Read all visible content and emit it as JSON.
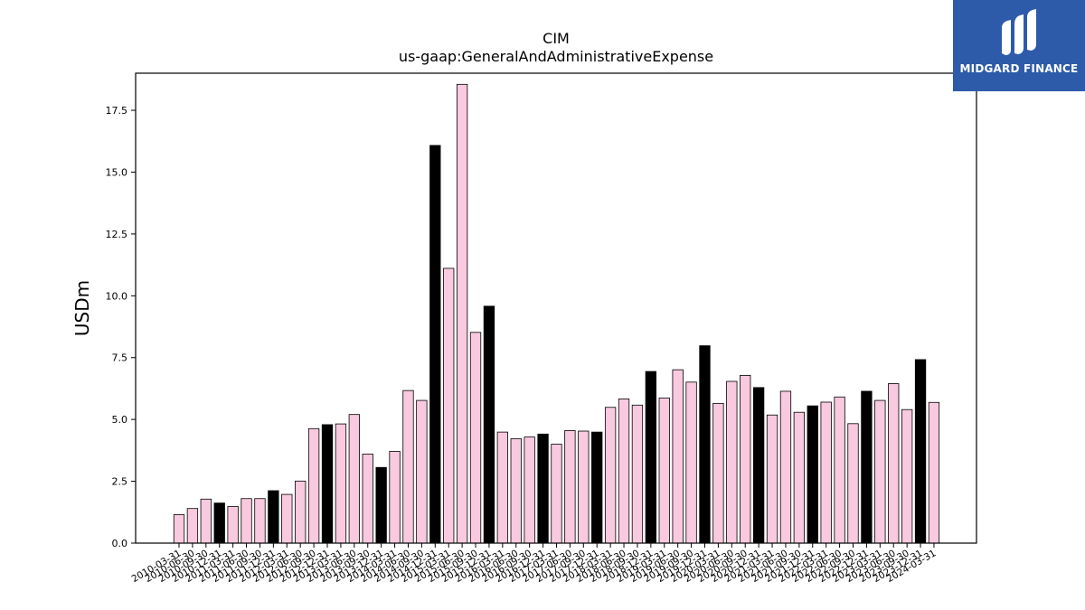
{
  "chart_data": {
    "type": "bar",
    "title": "CIM",
    "subtitle": "us-gaap:GeneralAndAdministrativeExpense",
    "xlabel": "",
    "ylabel": "USDm",
    "ylim": [
      0,
      19.0
    ],
    "yticks": [
      0.0,
      2.5,
      5.0,
      7.5,
      10.0,
      12.5,
      15.0,
      17.5
    ],
    "ytick_labels": [
      "0.0",
      "2.5",
      "5.0",
      "7.5",
      "10.0",
      "12.5",
      "15.0",
      "17.5"
    ],
    "grid": false,
    "colors": {
      "quarter": "#f9c9df",
      "year_end": "#000000",
      "edge": "#000000"
    },
    "categories": [
      "2010-03-31",
      "2010-06-30",
      "2010-09-30",
      "2010-12-31",
      "2011-03-31",
      "2011-06-30",
      "2011-09-30",
      "2011-12-31",
      "2012-03-31",
      "2012-06-30",
      "2012-09-30",
      "2012-12-31",
      "2013-03-31",
      "2013-06-30",
      "2013-09-30",
      "2013-12-31",
      "2014-03-31",
      "2014-06-30",
      "2014-09-30",
      "2014-12-31",
      "2015-03-31",
      "2015-06-30",
      "2015-09-30",
      "2015-12-31",
      "2016-03-31",
      "2016-06-30",
      "2016-09-30",
      "2016-12-31",
      "2017-03-31",
      "2017-06-30",
      "2017-09-30",
      "2017-12-31",
      "2018-03-31",
      "2018-06-30",
      "2018-09-30",
      "2018-12-31",
      "2019-03-31",
      "2019-06-30",
      "2019-09-30",
      "2019-12-31",
      "2020-03-31",
      "2020-06-30",
      "2020-09-30",
      "2020-12-31",
      "2021-03-31",
      "2021-06-30",
      "2021-09-30",
      "2021-12-31",
      "2022-03-31",
      "2022-06-30",
      "2022-09-30",
      "2022-12-31",
      "2023-03-31",
      "2023-06-30",
      "2023-09-30",
      "2023-12-31",
      "2024-03-31"
    ],
    "tick_labels": [
      "2010-03-31",
      "2010-06-30",
      "2010-09-30",
      "2010-12-31",
      "2011-03-31",
      "2011-06-30",
      "2011-09-30",
      "2011-12-31",
      "2012-03-31",
      "2012-06-30",
      "2012-09-30",
      "2012-12-31",
      "2013-03-31",
      "2013-06-30",
      "2013-09-30",
      "2013-12-31",
      "2014-03-31",
      "2014-06-30",
      "2014-09-30",
      "2014-12-31",
      "2015-03-31",
      "2015-06-30",
      "2015-09-30",
      "2015-12-31",
      "2016-03-31",
      "2016-06-30",
      "2016-09-30",
      "2016-12-31",
      "2017-03-31",
      "2017-06-30",
      "2017-09-30",
      "2017-12-31",
      "2018-03-31",
      "2018-06-30",
      "2018-09-30",
      "2018-12-31",
      "2019-03-31",
      "2019-06-30",
      "2019-09-30",
      "2019-12-31",
      "2020-03-31",
      "2020-06-30",
      "2020-09-30",
      "2020-12-31",
      "2021-03-31",
      "2021-06-30",
      "2021-09-30",
      "2021-12-31",
      "2022-03-31",
      "2022-06-30",
      "2022-09-30",
      "2022-12-31",
      "2023-03-31",
      "2023-06-30",
      "2023-09-30",
      "2023-12-31",
      "2024-03-31"
    ],
    "values": [
      1.15,
      1.4,
      1.78,
      1.62,
      1.48,
      1.8,
      1.8,
      2.12,
      1.97,
      2.51,
      4.63,
      4.79,
      4.82,
      5.2,
      3.6,
      3.06,
      3.71,
      6.17,
      5.77,
      16.08,
      11.11,
      18.55,
      8.52,
      9.58,
      4.49,
      4.22,
      4.29,
      4.41,
      4.0,
      4.55,
      4.53,
      4.49,
      5.49,
      5.83,
      5.58,
      6.94,
      5.87,
      7.01,
      6.51,
      7.98,
      5.65,
      6.54,
      6.78,
      6.29,
      5.18,
      6.14,
      5.29,
      5.55,
      5.7,
      5.91,
      4.83,
      6.14,
      5.77,
      6.45,
      5.4,
      7.42,
      5.69
    ],
    "year_end": [
      false,
      false,
      false,
      true,
      false,
      false,
      false,
      true,
      false,
      false,
      false,
      true,
      false,
      false,
      false,
      true,
      false,
      false,
      false,
      true,
      false,
      false,
      false,
      true,
      false,
      false,
      false,
      true,
      false,
      false,
      false,
      true,
      false,
      false,
      false,
      true,
      false,
      false,
      false,
      true,
      false,
      false,
      false,
      true,
      false,
      false,
      false,
      true,
      false,
      false,
      false,
      true,
      false,
      false,
      false,
      true,
      false
    ]
  },
  "logo": {
    "text": "MIDGARD FINANCE",
    "background": "#2d5baa"
  }
}
